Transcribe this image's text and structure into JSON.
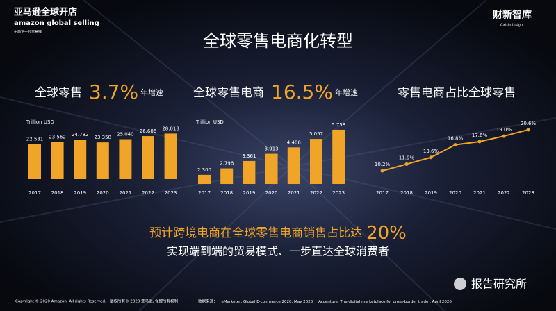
{
  "slide": {
    "title": "全球零售电商化转型",
    "logo_cn": "亚马逊全球开店",
    "logo_en": "amazon global selling",
    "logo_tagline": "布局下一代贸易链",
    "partner_cn": "财新智库",
    "partner_en": "Caixin Insight",
    "forecast_text": "预计跨境电商在全球零售电商销售占比达",
    "forecast_value": "20%",
    "forecast_sub": "实现端到端的贸易模式、一步直达全球消费者",
    "copyright": "Copyright © 2020 Amazon. All rights Reserved. | 版权所有© 2020 亚马逊, 保留所有权利",
    "source_label": "数据来源：",
    "source_1": "eMarketer, Global E-commerce 2020, May 2020",
    "source_2": "Accenture, The digital marketplace for cross-border trade , April 2020",
    "watermark": "报告研究所"
  },
  "chart_data": [
    {
      "type": "bar",
      "title": "全球零售",
      "growth": "3.7%",
      "growth_note": "年增速",
      "unit": "Trillion USD",
      "categories": [
        "2017",
        "2018",
        "2019",
        "2020",
        "2021",
        "2022",
        "2023"
      ],
      "values": [
        22.531,
        23.562,
        24.782,
        23.358,
        25.04,
        26.686,
        28.018
      ],
      "value_labels": [
        "22.531",
        "23.562",
        "24.782",
        "23.358",
        "25.040",
        "26.686",
        "28.018"
      ],
      "color": "#f0a428",
      "ylim": [
        4,
        30
      ]
    },
    {
      "type": "bar",
      "title": "全球零售电商",
      "growth": "16.5%",
      "growth_note": "年增速",
      "unit": "Trillion USD",
      "categories": [
        "2017",
        "2018",
        "2019",
        "2020",
        "2021",
        "2022",
        "2023"
      ],
      "values": [
        2.3,
        2.796,
        3.361,
        3.913,
        4.406,
        5.057,
        5.758
      ],
      "value_labels": [
        "2.300",
        "2.796",
        "3.361",
        "3.913",
        "4.406",
        "5.057",
        "5.758"
      ],
      "color": "#f0a428",
      "ylim": [
        1.6,
        6.5
      ]
    },
    {
      "type": "line",
      "title": "零售电商占比全球零售",
      "categories": [
        "2017",
        "2018",
        "2019",
        "2020",
        "2021",
        "2022",
        "2023"
      ],
      "values": [
        10.2,
        11.9,
        13.6,
        16.8,
        17.6,
        19.0,
        20.6
      ],
      "value_labels": [
        "10.2%",
        "11.9%",
        "13.6%",
        "16.8%",
        "17.6%",
        "19.0%",
        "20.6%"
      ],
      "color": "#f0a428",
      "ylim": [
        6,
        22
      ]
    }
  ]
}
